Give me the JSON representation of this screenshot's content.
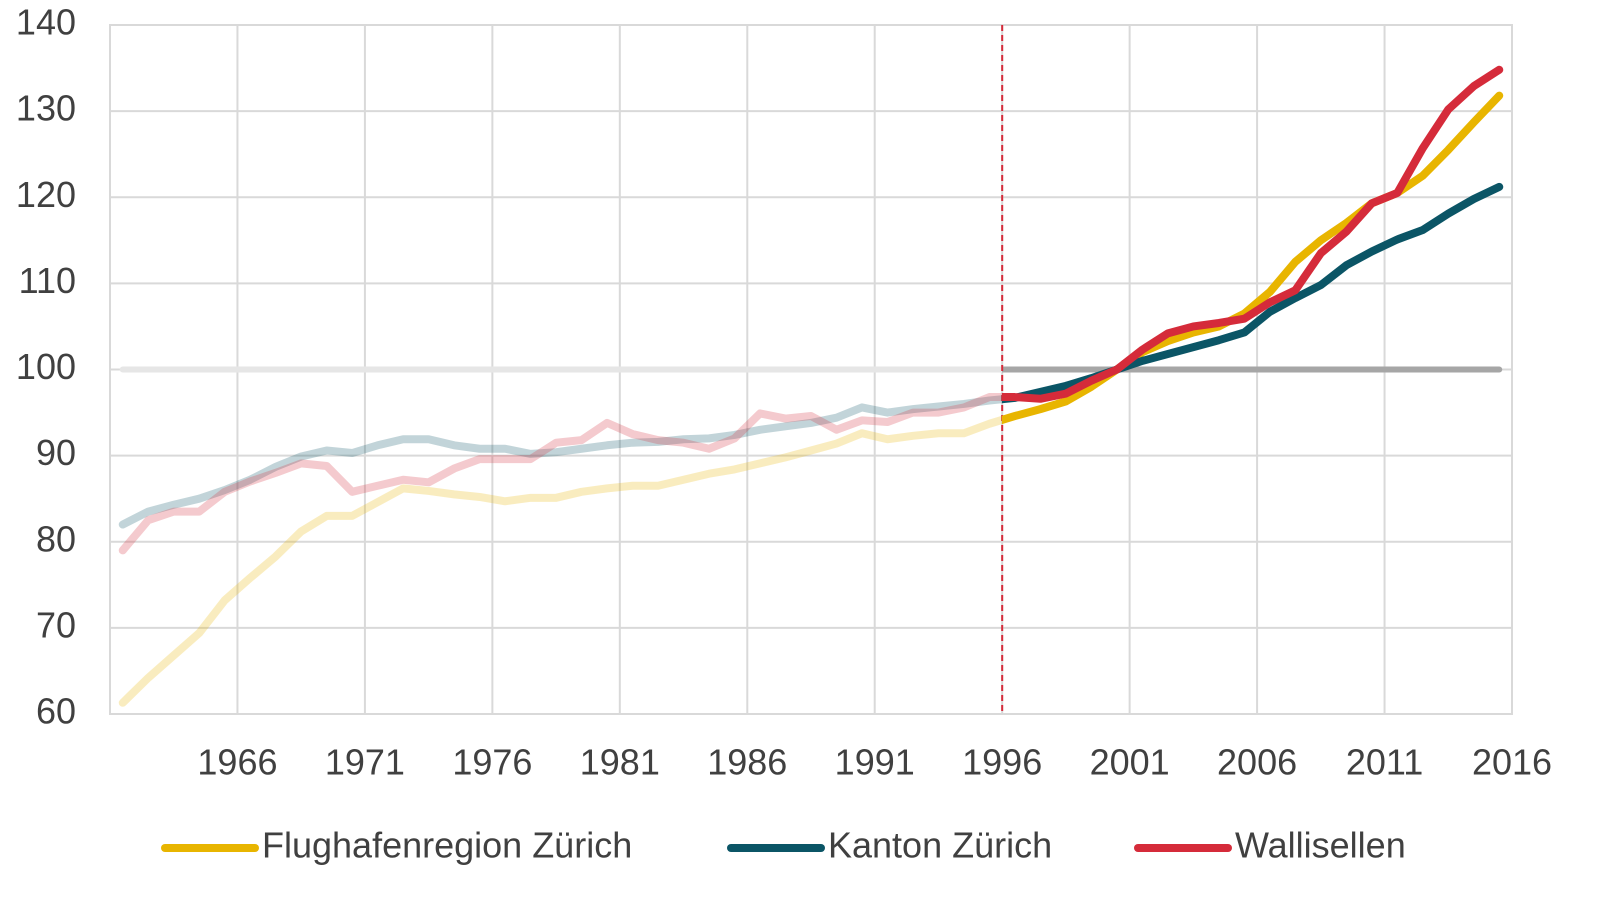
{
  "chart_data": {
    "type": "line",
    "x": [
      1962,
      1963,
      1964,
      1965,
      1966,
      1967,
      1968,
      1969,
      1970,
      1971,
      1972,
      1973,
      1974,
      1975,
      1976,
      1977,
      1978,
      1979,
      1980,
      1981,
      1982,
      1983,
      1984,
      1985,
      1986,
      1987,
      1988,
      1989,
      1990,
      1991,
      1992,
      1993,
      1994,
      1995,
      1996,
      1997,
      1998,
      1999,
      2000,
      2001,
      2002,
      2003,
      2004,
      2005,
      2006,
      2007,
      2008,
      2009,
      2010,
      2011,
      2012,
      2013,
      2014,
      2015,
      2016
    ],
    "series": [
      {
        "name": "Flughafenregion Zürich",
        "color": "#e8b500",
        "values": [
          61.3,
          64.2,
          66.8,
          69.4,
          73.2,
          75.8,
          78.3,
          81.2,
          83,
          83,
          84.6,
          86.2,
          85.9,
          85.5,
          85.2,
          84.7,
          85.1,
          85.1,
          85.8,
          86.2,
          86.5,
          86.5,
          87.2,
          87.9,
          88.4,
          89.1,
          89.8,
          90.6,
          91.4,
          92.6,
          91.9,
          92.3,
          92.6,
          92.6,
          93.7,
          94.6,
          95.4,
          96.3,
          98,
          100,
          102,
          103.3,
          104.3,
          105,
          106.5,
          109,
          112.5,
          115,
          117,
          119.3,
          120.5,
          122.5,
          125.5,
          128.7,
          131.8
        ]
      },
      {
        "name": "Kanton Zürich",
        "color": "#0b5566",
        "values": [
          82,
          83.5,
          84.3,
          85,
          86,
          87.2,
          88.7,
          89.9,
          90.6,
          90.3,
          91.2,
          91.9,
          91.9,
          91.2,
          90.8,
          90.8,
          90.2,
          90.4,
          90.8,
          91.2,
          91.5,
          91.6,
          91.9,
          92,
          92.4,
          93,
          93.4,
          93.8,
          94.4,
          95.6,
          95,
          95.4,
          95.7,
          96,
          96.4,
          96.7,
          97.4,
          98.1,
          99,
          100,
          101,
          101.8,
          102.6,
          103.4,
          104.3,
          106.7,
          108.3,
          109.8,
          112.1,
          113.7,
          115.1,
          116.2,
          118.1,
          119.8,
          121.2
        ]
      },
      {
        "name": "Wallisellen",
        "color": "#d52b3a",
        "values": [
          79,
          82.5,
          83.5,
          83.5,
          85.8,
          87,
          88,
          89.1,
          88.8,
          85.8,
          86.5,
          87.2,
          86.9,
          88.5,
          89.6,
          89.6,
          89.6,
          91.5,
          91.8,
          93.8,
          92.5,
          91.8,
          91.5,
          90.8,
          92,
          94.9,
          94.3,
          94.6,
          93,
          94.1,
          93.9,
          95,
          95,
          95.6,
          96.8,
          96.8,
          96.6,
          97.2,
          98.7,
          100,
          102.3,
          104.2,
          105,
          105.4,
          105.9,
          107.8,
          109.2,
          113.5,
          116,
          119.3,
          120.5,
          125.7,
          130.2,
          132.9,
          134.8
        ]
      }
    ],
    "xlim": [
      1961.5,
      2016.5
    ],
    "xticks": [
      {
        "value": 1966.5,
        "label": "1966"
      },
      {
        "value": 1971.5,
        "label": "1971"
      },
      {
        "value": 1976.5,
        "label": "1976"
      },
      {
        "value": 1981.5,
        "label": "1981"
      },
      {
        "value": 1986.5,
        "label": "1986"
      },
      {
        "value": 1991.5,
        "label": "1991"
      },
      {
        "value": 1996.5,
        "label": "1996"
      },
      {
        "value": 2001.5,
        "label": "2001"
      },
      {
        "value": 2006.5,
        "label": "2006"
      },
      {
        "value": 2011.5,
        "label": "2011"
      },
      {
        "value": 2016.5,
        "label": "2016"
      }
    ],
    "ylim": [
      60,
      140
    ],
    "yticks": [
      60,
      70,
      80,
      90,
      100,
      110,
      120,
      130,
      140
    ],
    "reference_line": 100,
    "highlight_from": 1996.5,
    "grid": true,
    "legend": "bottom"
  }
}
